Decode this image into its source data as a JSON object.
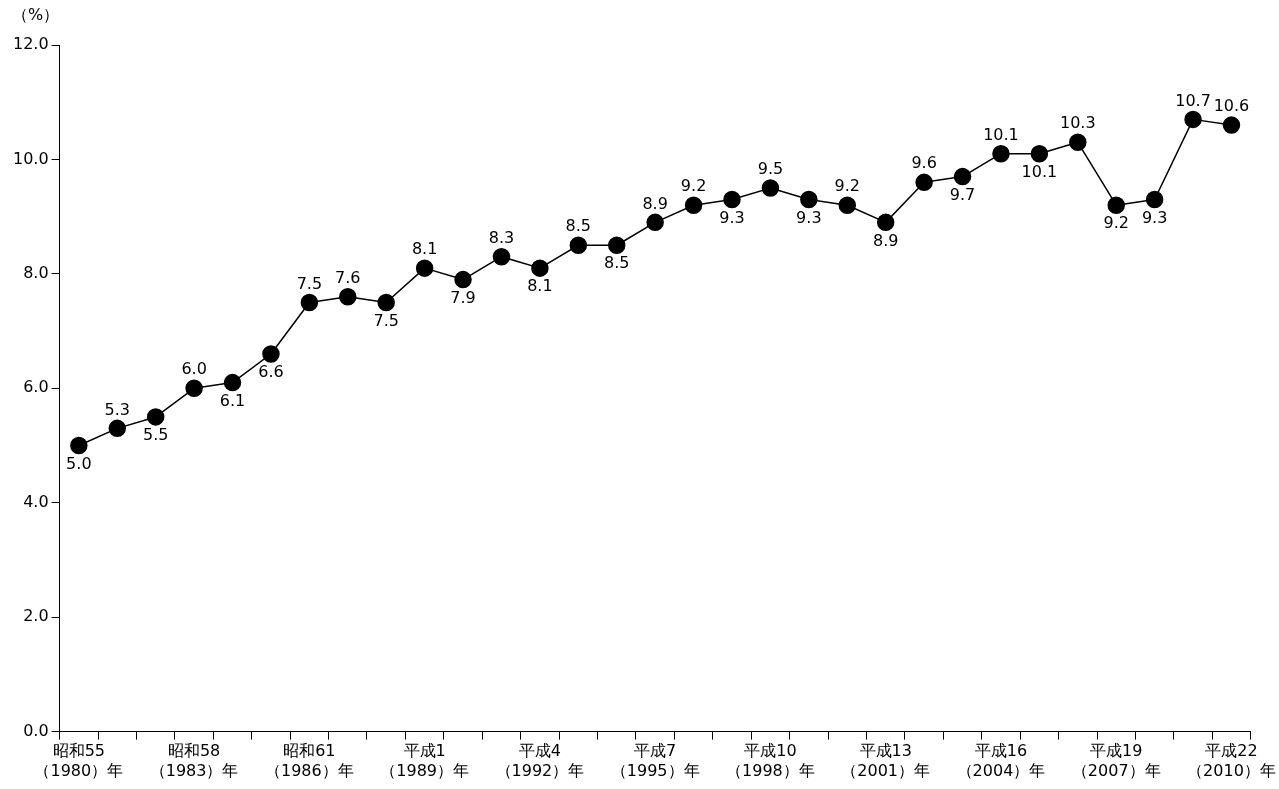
{
  "chart_data": {
    "type": "line",
    "ylabel": "（%）",
    "categories": [
      "昭和55\n（1980）年",
      null,
      null,
      "昭和58\n（1983）年",
      null,
      null,
      "昭和61\n（1986）年",
      null,
      null,
      "平成1\n（1989）年",
      null,
      null,
      "平成4\n（1992）年",
      null,
      null,
      "平成7\n（1995）年",
      null,
      null,
      "平成10\n（1998）年",
      null,
      null,
      "平成13\n（2001）年",
      null,
      null,
      "平成16\n（2004）年",
      null,
      null,
      "平成19\n（2007）年",
      null,
      null,
      "平成22\n（2010）年"
    ],
    "series": [
      {
        "color": "#000000",
        "values": [
          5.0,
          5.3,
          5.5,
          6.0,
          6.1,
          6.6,
          7.5,
          7.6,
          7.5,
          8.1,
          7.9,
          8.3,
          8.1,
          8.5,
          8.5,
          8.9,
          9.2,
          9.3,
          9.5,
          9.3,
          9.2,
          8.9,
          9.6,
          9.7,
          10.1,
          10.1,
          10.3,
          9.2,
          9.3,
          10.7,
          10.6
        ],
        "value_labels": [
          "5.0",
          "5.3",
          "5.5",
          "6.0",
          "6.1",
          "6.6",
          "7.5",
          "7.6",
          "7.5",
          "8.1",
          "7.9",
          "8.3",
          "8.1",
          "8.5",
          "8.5",
          "8.9",
          "9.2",
          "9.3",
          "9.5",
          "9.3",
          "9.2",
          "8.9",
          "9.6",
          "9.7",
          "10.1",
          "10.1",
          "10.3",
          "9.2",
          "9.3",
          "10.7",
          "10.6"
        ]
      }
    ],
    "ylim": [
      0,
      12
    ],
    "yticks": [
      {
        "value": 0,
        "label": "0.0"
      },
      {
        "value": 2,
        "label": "2.0"
      },
      {
        "value": 4,
        "label": "4.0"
      },
      {
        "value": 6,
        "label": "6.0"
      },
      {
        "value": 8,
        "label": "8.0"
      },
      {
        "value": 10,
        "label": "10.0"
      },
      {
        "value": 12,
        "label": "12.0"
      }
    ],
    "grid": false,
    "legend": false,
    "marker": "circle",
    "line_style": "solid"
  }
}
